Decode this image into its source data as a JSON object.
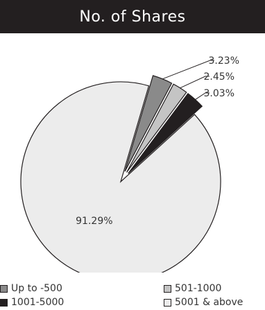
{
  "chart_data": {
    "type": "pie",
    "title": "No. of Shares",
    "categories": [
      "Up to -500",
      "501-1000",
      "1001-5000",
      "5001 & above"
    ],
    "values": [
      3.23,
      2.45,
      3.03,
      91.29
    ],
    "value_labels": [
      "3.23%",
      "2.45%",
      "3.03%",
      "91.29%"
    ],
    "colors": [
      "#8a8a8a",
      "#c4c4c4",
      "#231f20",
      "#ececec"
    ],
    "exploded_slices": [
      "Up to -500",
      "501-1000",
      "1001-5000"
    ],
    "legend_position": "bottom",
    "grid": false
  }
}
